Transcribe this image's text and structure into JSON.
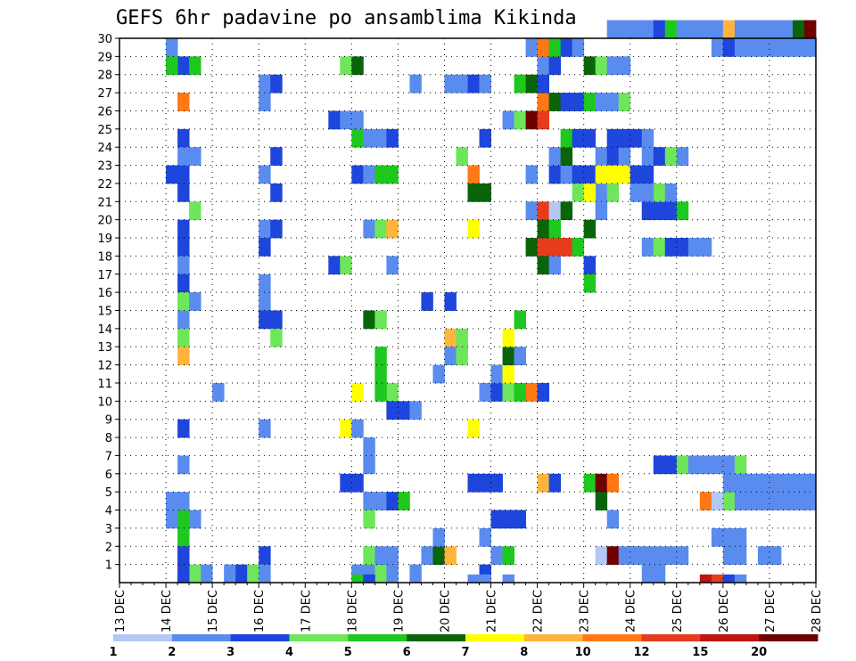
{
  "chart_data": {
    "type": "heatmap",
    "title": "GEFS 6hr padavine po ansamblima Kikinda",
    "xlabel": "",
    "ylabel": "",
    "x_tick_labels": [
      "13 DEC",
      "14 DEC",
      "15 DEC",
      "16 DEC",
      "17 DEC",
      "18 DEC",
      "19 DEC",
      "20 DEC",
      "21 DEC",
      "22 DEC",
      "23 DEC",
      "24 DEC",
      "25 DEC",
      "26 DEC",
      "27 DEC",
      "28 DEC"
    ],
    "y_tick_labels": [
      "1",
      "2",
      "3",
      "4",
      "5",
      "6",
      "7",
      "8",
      "9",
      "10",
      "11",
      "12",
      "13",
      "14",
      "15",
      "16",
      "17",
      "18",
      "19",
      "20",
      "21",
      "22",
      "23",
      "24",
      "25",
      "26",
      "27",
      "28",
      "29",
      "30"
    ],
    "xlim": [
      0,
      60
    ],
    "ylim": [
      0,
      30
    ],
    "grid": true,
    "legend": {
      "placement": "bottom",
      "thresholds": [
        "1",
        "2",
        "3",
        "4",
        "5",
        "6",
        "7",
        "8",
        "10",
        "12",
        "15",
        "20"
      ],
      "colors": [
        "#b4c8f5",
        "#5a8cf0",
        "#1e46dc",
        "#6ee65a",
        "#1ec81e",
        "#0a640a",
        "#ffff00",
        "#ffb43c",
        "#ff7814",
        "#e63c1e",
        "#c01414",
        "#6e0000"
      ]
    },
    "cell_x_unit": "6-hour step (4 per day, starting 13 DEC)",
    "cell_y_unit": "ensemble member (1-30, 0 = bottom row)",
    "cells": [
      [
        5,
        0,
        1
      ],
      [
        6,
        0,
        3
      ],
      [
        7,
        0,
        1
      ],
      [
        4,
        29,
        1
      ],
      [
        5,
        28,
        2
      ],
      [
        4,
        28,
        4
      ],
      [
        6,
        28,
        4
      ],
      [
        4,
        3,
        1
      ],
      [
        5,
        3,
        4
      ],
      [
        6,
        3,
        1
      ],
      [
        5,
        2,
        4
      ],
      [
        5,
        1,
        1
      ],
      [
        4,
        4,
        1
      ],
      [
        5,
        4,
        1
      ],
      [
        5,
        0,
        2
      ],
      [
        5,
        1,
        2
      ],
      [
        6,
        23,
        1
      ],
      [
        4,
        22,
        2
      ],
      [
        5,
        22,
        2
      ],
      [
        5,
        21,
        2
      ],
      [
        6,
        20,
        3
      ],
      [
        5,
        19,
        2
      ],
      [
        5,
        18,
        2
      ],
      [
        5,
        17,
        1
      ],
      [
        5,
        16,
        2
      ],
      [
        5,
        15,
        3
      ],
      [
        6,
        15,
        1
      ],
      [
        5,
        14,
        1
      ],
      [
        5,
        13,
        3
      ],
      [
        5,
        12,
        7
      ],
      [
        5,
        8,
        2
      ],
      [
        5,
        6,
        1
      ],
      [
        5,
        24,
        2
      ],
      [
        5,
        26,
        8
      ],
      [
        5,
        23,
        1
      ],
      [
        9,
        0,
        1
      ],
      [
        10,
        0,
        2
      ],
      [
        11,
        0,
        3
      ],
      [
        12,
        1,
        2
      ],
      [
        12,
        0,
        1
      ],
      [
        8,
        10,
        1
      ],
      [
        12,
        27,
        1
      ],
      [
        13,
        27,
        2
      ],
      [
        12,
        26,
        1
      ],
      [
        13,
        23,
        2
      ],
      [
        12,
        22,
        1
      ],
      [
        13,
        21,
        2
      ],
      [
        12,
        19,
        1
      ],
      [
        13,
        19,
        2
      ],
      [
        12,
        18,
        2
      ],
      [
        12,
        16,
        1
      ],
      [
        12,
        15,
        1
      ],
      [
        12,
        14,
        2
      ],
      [
        13,
        14,
        2
      ],
      [
        13,
        13,
        3
      ],
      [
        12,
        8,
        1
      ],
      [
        19,
        28,
        3
      ],
      [
        20,
        28,
        5
      ],
      [
        18,
        25,
        2
      ],
      [
        19,
        25,
        1
      ],
      [
        20,
        25,
        1
      ],
      [
        20,
        24,
        4
      ],
      [
        21,
        24,
        1
      ],
      [
        22,
        24,
        1
      ],
      [
        23,
        24,
        2
      ],
      [
        20,
        22,
        2
      ],
      [
        21,
        22,
        1
      ],
      [
        22,
        22,
        4
      ],
      [
        23,
        22,
        4
      ],
      [
        21,
        19,
        1
      ],
      [
        22,
        19,
        3
      ],
      [
        23,
        19,
        7
      ],
      [
        18,
        17,
        2
      ],
      [
        19,
        17,
        3
      ],
      [
        23,
        17,
        1
      ],
      [
        21,
        14,
        5
      ],
      [
        22,
        14,
        3
      ],
      [
        23,
        10,
        3
      ],
      [
        23,
        9,
        2
      ],
      [
        24,
        9,
        2
      ],
      [
        25,
        9,
        1
      ],
      [
        19,
        8,
        6
      ],
      [
        20,
        8,
        1
      ],
      [
        21,
        7,
        1
      ],
      [
        21,
        6,
        1
      ],
      [
        19,
        5,
        2
      ],
      [
        20,
        5,
        2
      ],
      [
        21,
        4,
        1
      ],
      [
        22,
        4,
        1
      ],
      [
        23,
        4,
        2
      ],
      [
        24,
        4,
        4
      ],
      [
        21,
        3,
        3
      ],
      [
        20,
        0,
        4
      ],
      [
        21,
        0,
        1
      ],
      [
        22,
        0,
        3
      ],
      [
        23,
        0,
        1
      ],
      [
        21,
        1,
        3
      ],
      [
        22,
        1,
        1
      ],
      [
        23,
        1,
        1
      ],
      [
        20,
        0,
        1
      ],
      [
        20,
        -1,
        4
      ],
      [
        21,
        -1,
        2
      ],
      [
        20,
        10,
        6
      ],
      [
        22,
        12,
        4
      ],
      [
        22,
        11,
        4
      ],
      [
        22,
        10,
        4
      ],
      [
        25,
        0,
        1
      ],
      [
        26,
        1,
        1
      ],
      [
        27,
        1,
        5
      ],
      [
        28,
        1,
        7
      ],
      [
        27,
        2,
        1
      ],
      [
        26,
        15,
        2
      ],
      [
        28,
        13,
        7
      ],
      [
        29,
        13,
        3
      ],
      [
        27,
        11,
        1
      ],
      [
        28,
        12,
        1
      ],
      [
        29,
        12,
        3
      ],
      [
        28,
        15,
        2
      ],
      [
        30,
        8,
        6
      ],
      [
        30,
        19,
        6
      ],
      [
        29,
        23,
        3
      ],
      [
        30,
        22,
        8
      ],
      [
        30,
        21,
        5
      ],
      [
        31,
        21,
        5
      ],
      [
        25,
        27,
        1
      ],
      [
        29,
        27,
        1
      ],
      [
        30,
        27,
        2
      ],
      [
        31,
        27,
        1
      ],
      [
        28,
        27,
        1
      ],
      [
        31,
        24,
        2
      ],
      [
        30,
        5,
        2
      ],
      [
        31,
        5,
        2
      ],
      [
        32,
        5,
        2
      ],
      [
        31,
        2,
        1
      ],
      [
        31,
        0,
        2
      ],
      [
        30,
        -1,
        1
      ],
      [
        31,
        -1,
        1
      ],
      [
        33,
        -1,
        1
      ],
      [
        32,
        1,
        1
      ],
      [
        33,
        1,
        4
      ],
      [
        31,
        10,
        1
      ],
      [
        32,
        10,
        2
      ],
      [
        33,
        10,
        3
      ],
      [
        34,
        10,
        4
      ],
      [
        35,
        10,
        8
      ],
      [
        36,
        10,
        2
      ],
      [
        32,
        11,
        1
      ],
      [
        33,
        11,
        6
      ],
      [
        33,
        12,
        5
      ],
      [
        34,
        12,
        1
      ],
      [
        33,
        13,
        6
      ],
      [
        32,
        3,
        2
      ],
      [
        33,
        3,
        2
      ],
      [
        34,
        3,
        2
      ],
      [
        36,
        5,
        7
      ],
      [
        37,
        5,
        2
      ],
      [
        34,
        14,
        4
      ],
      [
        35,
        18,
        5
      ],
      [
        36,
        18,
        9
      ],
      [
        37,
        18,
        9
      ],
      [
        38,
        18,
        9
      ],
      [
        39,
        18,
        4
      ],
      [
        36,
        17,
        5
      ],
      [
        37,
        17,
        1
      ],
      [
        33,
        25,
        1
      ],
      [
        34,
        25,
        3
      ],
      [
        35,
        25,
        11
      ],
      [
        36,
        25,
        9
      ],
      [
        36,
        26,
        8
      ],
      [
        37,
        26,
        5
      ],
      [
        38,
        26,
        2
      ],
      [
        39,
        26,
        2
      ],
      [
        40,
        26,
        4
      ],
      [
        41,
        26,
        1
      ],
      [
        42,
        26,
        1
      ],
      [
        43,
        26,
        3
      ],
      [
        35,
        20,
        1
      ],
      [
        36,
        20,
        9
      ],
      [
        37,
        20,
        12
      ],
      [
        38,
        20,
        5
      ],
      [
        36,
        19,
        5
      ],
      [
        37,
        19,
        4
      ],
      [
        35,
        22,
        1
      ],
      [
        37,
        22,
        2
      ],
      [
        37,
        23,
        1
      ],
      [
        38,
        22,
        1
      ],
      [
        38,
        23,
        5
      ],
      [
        38,
        24,
        4
      ],
      [
        39,
        24,
        2
      ],
      [
        40,
        24,
        2
      ],
      [
        41,
        23,
        1
      ],
      [
        42,
        23,
        2
      ],
      [
        43,
        23,
        1
      ],
      [
        39,
        22,
        2
      ],
      [
        40,
        22,
        2
      ],
      [
        41,
        22,
        4
      ],
      [
        40,
        19,
        5
      ],
      [
        40,
        17,
        2
      ],
      [
        40,
        16,
        4
      ],
      [
        42,
        22,
        6
      ],
      [
        43,
        22,
        6
      ],
      [
        39,
        21,
        3
      ],
      [
        40,
        21,
        4
      ],
      [
        41,
        20,
        1
      ],
      [
        41,
        21,
        1
      ],
      [
        34,
        27,
        4
      ],
      [
        35,
        27,
        5
      ],
      [
        36,
        27,
        2
      ],
      [
        36,
        28,
        1
      ],
      [
        37,
        28,
        2
      ],
      [
        35,
        29,
        1
      ],
      [
        36,
        29,
        8
      ],
      [
        37,
        29,
        4
      ],
      [
        38,
        29,
        2
      ],
      [
        39,
        29,
        1
      ],
      [
        40,
        28,
        5
      ],
      [
        41,
        28,
        3
      ],
      [
        42,
        28,
        1
      ],
      [
        43,
        28,
        1
      ],
      [
        40,
        21,
        6
      ],
      [
        41,
        22,
        6
      ],
      [
        42,
        21,
        3
      ],
      [
        42,
        24,
        2
      ],
      [
        43,
        24,
        2
      ],
      [
        44,
        24,
        2
      ],
      [
        45,
        24,
        1
      ],
      [
        40,
        5,
        4
      ],
      [
        41,
        5,
        11
      ],
      [
        42,
        5,
        8
      ],
      [
        41,
        4,
        5
      ],
      [
        42,
        3,
        1
      ],
      [
        41,
        1,
        12
      ],
      [
        42,
        1,
        11
      ],
      [
        43,
        1,
        1
      ],
      [
        44,
        1,
        3
      ],
      [
        45,
        1,
        1
      ],
      [
        46,
        1,
        1
      ],
      [
        47,
        1,
        1
      ],
      [
        48,
        1,
        1
      ],
      [
        44,
        1,
        1
      ],
      [
        45,
        0,
        1
      ],
      [
        46,
        0,
        1
      ],
      [
        45,
        18,
        1
      ],
      [
        46,
        18,
        3
      ],
      [
        47,
        18,
        2
      ],
      [
        48,
        18,
        2
      ],
      [
        49,
        18,
        1
      ],
      [
        50,
        18,
        1
      ],
      [
        46,
        20,
        2
      ],
      [
        47,
        20,
        2
      ],
      [
        48,
        20,
        4
      ],
      [
        45,
        20,
        2
      ],
      [
        46,
        21,
        3
      ],
      [
        47,
        21,
        1
      ],
      [
        44,
        22,
        2
      ],
      [
        45,
        22,
        2
      ],
      [
        44,
        21,
        1
      ],
      [
        45,
        21,
        1
      ],
      [
        45,
        23,
        1
      ],
      [
        46,
        23,
        2
      ],
      [
        47,
        23,
        3
      ],
      [
        48,
        23,
        1
      ],
      [
        46,
        6,
        2
      ],
      [
        47,
        6,
        2
      ],
      [
        48,
        6,
        3
      ],
      [
        49,
        6,
        1
      ],
      [
        50,
        6,
        1
      ],
      [
        51,
        6,
        1
      ],
      [
        52,
        6,
        1
      ],
      [
        53,
        6,
        3
      ],
      [
        50,
        4,
        8
      ],
      [
        51,
        4,
        12
      ],
      [
        52,
        4,
        3
      ],
      [
        53,
        4,
        1
      ],
      [
        54,
        4,
        1
      ],
      [
        55,
        4,
        1
      ],
      [
        56,
        4,
        1
      ],
      [
        57,
        4,
        1
      ],
      [
        58,
        4,
        1
      ],
      [
        59,
        4,
        1
      ],
      [
        42,
        30,
        1
      ],
      [
        43,
        30,
        1
      ],
      [
        44,
        30,
        1
      ],
      [
        45,
        30,
        1
      ],
      [
        46,
        30,
        2
      ],
      [
        47,
        30,
        4
      ],
      [
        48,
        30,
        1
      ],
      [
        49,
        30,
        1
      ],
      [
        50,
        30,
        1
      ],
      [
        51,
        30,
        1
      ],
      [
        52,
        30,
        7
      ],
      [
        53,
        30,
        1
      ],
      [
        54,
        30,
        1
      ],
      [
        55,
        30,
        1
      ],
      [
        56,
        30,
        1
      ],
      [
        57,
        30,
        1
      ],
      [
        58,
        30,
        5
      ],
      [
        59,
        30,
        11
      ],
      [
        51,
        2,
        1
      ],
      [
        52,
        2,
        1
      ],
      [
        53,
        2,
        1
      ],
      [
        52,
        1,
        1
      ],
      [
        53,
        1,
        1
      ],
      [
        55,
        1,
        1
      ],
      [
        56,
        1,
        1
      ],
      [
        51,
        29,
        1
      ],
      [
        52,
        29,
        2
      ],
      [
        53,
        29,
        1
      ],
      [
        54,
        29,
        1
      ],
      [
        55,
        29,
        1
      ],
      [
        56,
        29,
        1
      ],
      [
        57,
        29,
        1
      ],
      [
        58,
        29,
        1
      ],
      [
        59,
        29,
        1
      ],
      [
        52,
        5,
        1
      ],
      [
        53,
        5,
        1
      ],
      [
        54,
        5,
        1
      ],
      [
        55,
        5,
        1
      ],
      [
        56,
        5,
        1
      ],
      [
        57,
        5,
        1
      ],
      [
        58,
        5,
        1
      ],
      [
        59,
        5,
        1
      ],
      [
        50,
        -1,
        10
      ],
      [
        51,
        -1,
        9
      ],
      [
        52,
        -1,
        2
      ],
      [
        53,
        -1,
        1
      ]
    ]
  }
}
